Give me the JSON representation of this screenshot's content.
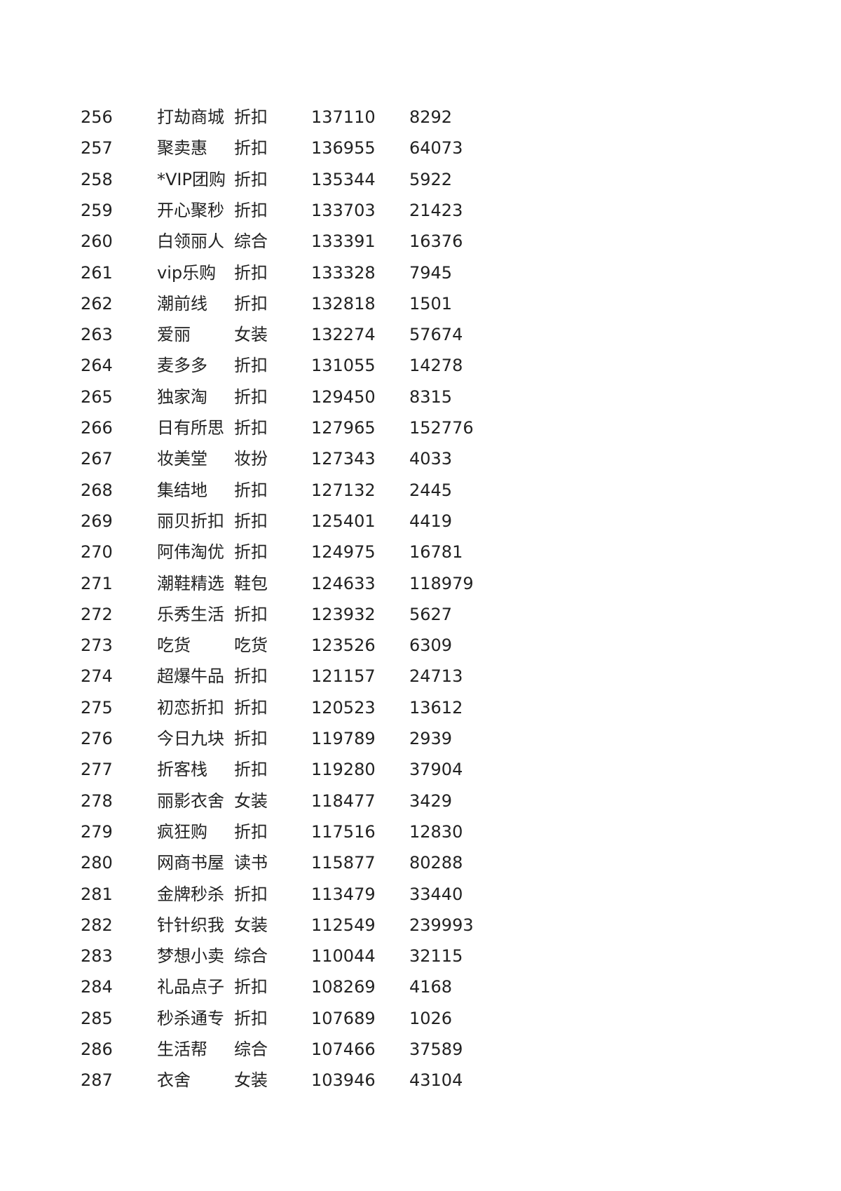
{
  "table": {
    "rows": [
      [
        256,
        "打劫商城",
        "折扣",
        137110,
        8292
      ],
      [
        257,
        "聚卖惠",
        "折扣",
        136955,
        64073
      ],
      [
        258,
        "*VIP团购",
        "折扣",
        135344,
        5922
      ],
      [
        259,
        "开心聚秒",
        "折扣",
        133703,
        21423
      ],
      [
        260,
        "白领丽人",
        "综合",
        133391,
        16376
      ],
      [
        261,
        "vip乐购",
        "折扣",
        133328,
        7945
      ],
      [
        262,
        "潮前线",
        "折扣",
        132818,
        1501
      ],
      [
        263,
        "爱丽",
        "女装",
        132274,
        57674
      ],
      [
        264,
        "麦多多",
        "折扣",
        131055,
        14278
      ],
      [
        265,
        "独家淘",
        "折扣",
        129450,
        8315
      ],
      [
        266,
        "日有所思",
        "折扣",
        127965,
        152776
      ],
      [
        267,
        "妆美堂",
        "妆扮",
        127343,
        4033
      ],
      [
        268,
        "集结地",
        "折扣",
        127132,
        2445
      ],
      [
        269,
        "丽贝折扣",
        "折扣",
        125401,
        4419
      ],
      [
        270,
        "阿伟淘优",
        "折扣",
        124975,
        16781
      ],
      [
        271,
        "潮鞋精选",
        "鞋包",
        124633,
        118979
      ],
      [
        272,
        "乐秀生活",
        "折扣",
        123932,
        5627
      ],
      [
        273,
        "吃货",
        "吃货",
        123526,
        6309
      ],
      [
        274,
        "超爆牛品",
        "折扣",
        121157,
        24713
      ],
      [
        275,
        "初恋折扣",
        "折扣",
        120523,
        13612
      ],
      [
        276,
        "今日九块",
        "折扣",
        119789,
        2939
      ],
      [
        277,
        "折客栈",
        "折扣",
        119280,
        37904
      ],
      [
        278,
        "丽影衣舍",
        "女装",
        118477,
        3429
      ],
      [
        279,
        "疯狂购",
        "折扣",
        117516,
        12830
      ],
      [
        280,
        "网商书屋",
        "读书",
        115877,
        80288
      ],
      [
        281,
        "金牌秒杀",
        "折扣",
        113479,
        33440
      ],
      [
        282,
        "针针织我",
        "女装",
        112549,
        239993
      ],
      [
        283,
        "梦想小卖",
        "综合",
        110044,
        32115
      ],
      [
        284,
        "礼品点子",
        "折扣",
        108269,
        4168
      ],
      [
        285,
        "秒杀通专",
        "折扣",
        107689,
        1026
      ],
      [
        286,
        "生活帮",
        "综合",
        107466,
        37589
      ],
      [
        287,
        "衣舍",
        "女装",
        103946,
        43104
      ]
    ]
  }
}
